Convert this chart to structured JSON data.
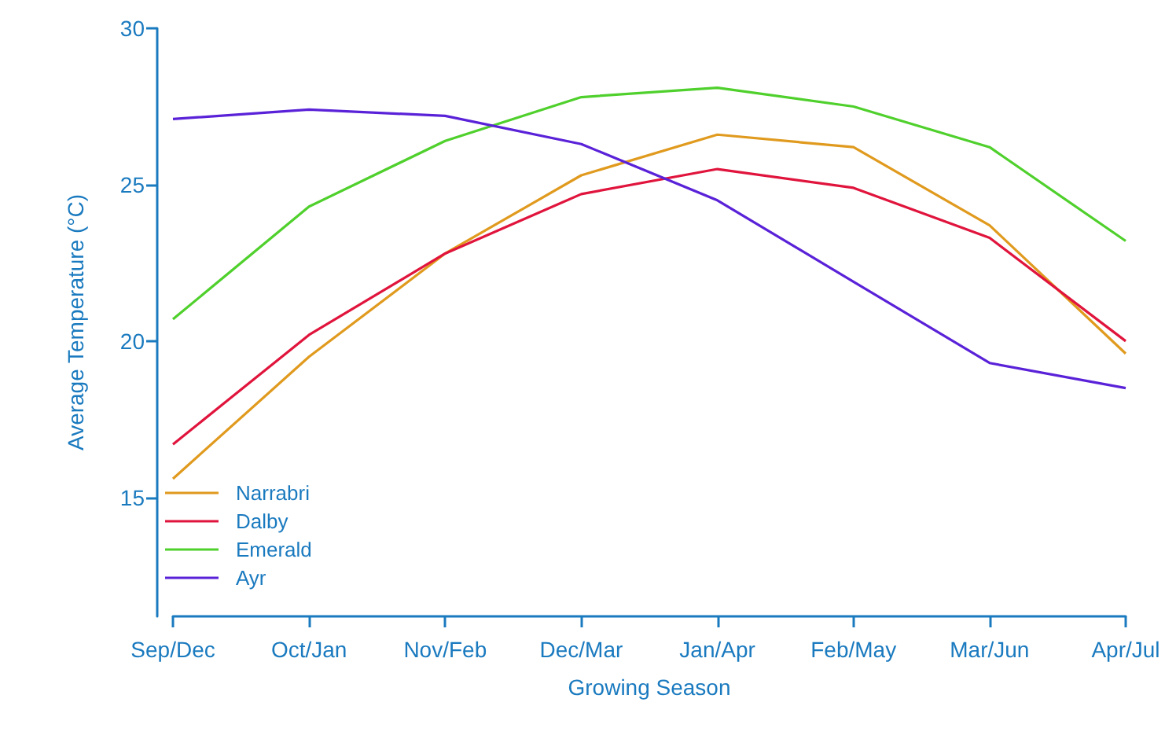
{
  "chart_data": {
    "type": "line",
    "xlabel": "Growing Season",
    "ylabel": "Average Temperature (°C)",
    "categories": [
      "Sep/Dec",
      "Oct/Jan",
      "Nov/Feb",
      "Dec/Mar",
      "Jan/Apr",
      "Feb/May",
      "Mar/Jun",
      "Apr/Jul"
    ],
    "series": [
      {
        "name": "Narrabri",
        "color": "#e09a1e",
        "values": [
          15.6,
          19.5,
          22.8,
          25.3,
          26.6,
          26.2,
          23.7,
          19.6
        ]
      },
      {
        "name": "Dalby",
        "color": "#e0143c",
        "values": [
          16.7,
          20.2,
          22.8,
          24.7,
          25.5,
          24.9,
          23.3,
          20.0
        ]
      },
      {
        "name": "Emerald",
        "color": "#4fd02c",
        "values": [
          20.7,
          24.3,
          26.4,
          27.8,
          28.1,
          27.5,
          26.2,
          23.2
        ]
      },
      {
        "name": "Ayr",
        "color": "#5a22d8",
        "values": [
          27.1,
          27.4,
          27.2,
          26.3,
          24.5,
          21.9,
          19.3,
          18.5
        ]
      }
    ],
    "ylim": [
      11.2,
      30
    ],
    "yticks": [
      15,
      20,
      25,
      30
    ],
    "grid": false,
    "legend": "bottom left",
    "marker": "none",
    "line_style": "solid"
  }
}
